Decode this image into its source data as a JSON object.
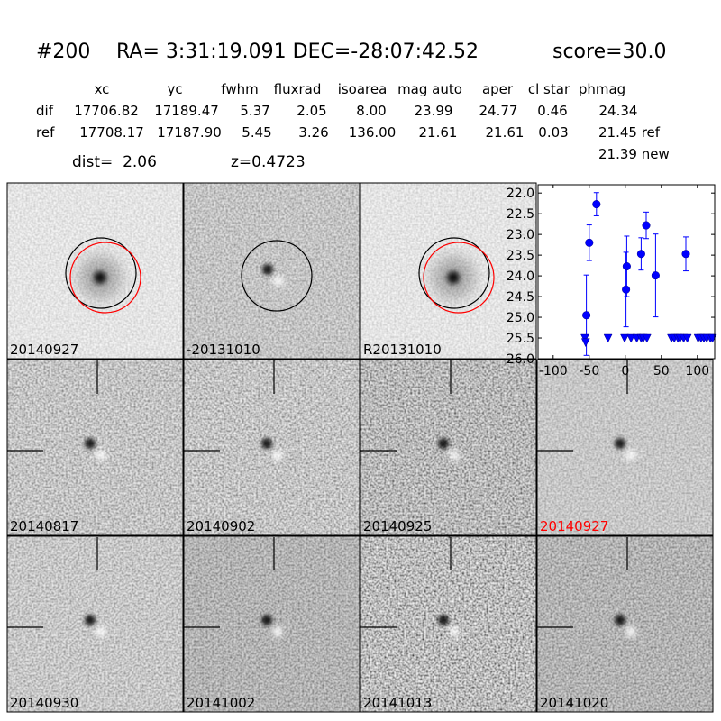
{
  "header": {
    "id": "#200",
    "coords": "RA= 3:31:19.091 DEC=-28:07:42.52",
    "score": "score=30.0"
  },
  "table": {
    "columns": [
      "xc",
      "yc",
      "fwhm",
      "fluxrad",
      "isoarea",
      "mag auto",
      "aper",
      "cl star",
      "phmag"
    ],
    "rows": [
      [
        "dif",
        "17706.82",
        "17189.47",
        "5.37",
        "2.05",
        "8.00",
        "23.99",
        "24.77",
        "0.46",
        "24.34"
      ],
      [
        "ref",
        "17708.17",
        "17187.90",
        "5.45",
        "3.26",
        "136.00",
        "21.61",
        "21.61",
        "0.03",
        "21.45 ref"
      ]
    ],
    "extra": "21.39 new"
  },
  "dist": "dist=  2.06",
  "z": "z=0.4723",
  "stamps": [
    {
      "label": "20140927"
    },
    {
      "label": "-20131010"
    },
    {
      "label": "R20131010"
    },
    {
      "label": "20140817"
    },
    {
      "label": "20140902"
    },
    {
      "label": "20140925"
    },
    {
      "label": "20140927",
      "color": "#ff0000"
    },
    {
      "label": "20140930"
    },
    {
      "label": "20141002"
    },
    {
      "label": "20141013"
    },
    {
      "label": "20141020"
    }
  ],
  "chart_data": {
    "type": "errorbar",
    "xlim": [
      -121,
      124
    ],
    "ylim": [
      21.8,
      26.0
    ],
    "y_inverted": true,
    "xticks": [
      -100,
      -50,
      0,
      50,
      100
    ],
    "yticks": [
      {
        "value": 22.0,
        "label": "22.0"
      },
      {
        "value": 22.5,
        "label": "22.5"
      },
      {
        "value": 23.0,
        "label": "23.0"
      },
      {
        "value": 23.5,
        "label": "23.5"
      },
      {
        "value": 24.0,
        "label": "24.0"
      },
      {
        "value": 24.5,
        "label": "24.5"
      },
      {
        "value": 25.0,
        "label": "25.0"
      },
      {
        "value": 25.5,
        "label": "25.5"
      },
      {
        "value": 26.0,
        "label": "26.0"
      }
    ],
    "series": [
      {
        "color": "#0000ff",
        "marker": "circle",
        "x": [
          -54,
          -50,
          -40,
          1,
          2,
          22,
          29,
          42,
          84
        ],
        "values": [
          24.95,
          23.2,
          22.27,
          24.33,
          23.77,
          23.47,
          22.78,
          23.99,
          23.47
        ],
        "errors": [
          0.97,
          0.43,
          0.28,
          0.9,
          0.73,
          0.39,
          0.32,
          1.0,
          0.41
        ]
      },
      {
        "color": "#0000ff",
        "marker": "triangle_down",
        "x": [
          -56,
          -55,
          -24,
          -1,
          8,
          16,
          22,
          25,
          30,
          64,
          68,
          73,
          76,
          81,
          86,
          101,
          105,
          109,
          113,
          118,
          121
        ],
        "values": [
          25.5,
          25.6,
          25.5,
          25.5,
          25.5,
          25.5,
          25.5,
          25.5,
          25.5,
          25.5,
          25.5,
          25.5,
          25.5,
          25.5,
          25.5,
          25.5,
          25.5,
          25.5,
          25.5,
          25.5,
          25.5
        ]
      }
    ]
  }
}
